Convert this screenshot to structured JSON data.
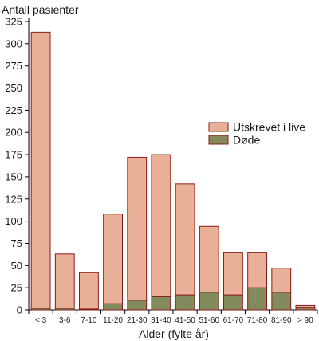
{
  "chart_data": {
    "type": "bar",
    "stacked": true,
    "ylabel": "Antall pasienter",
    "xlabel": "Alder (fylte år)",
    "ylim": [
      0,
      325
    ],
    "yticks": [
      0,
      25,
      50,
      75,
      100,
      125,
      150,
      175,
      200,
      225,
      250,
      275,
      300,
      325
    ],
    "categories": [
      "< 3",
      "3-6",
      "7-10",
      "11-20",
      "21-30",
      "31-40",
      "41-50",
      "51-60",
      "61-70",
      "71-80",
      "81-90",
      "> 90"
    ],
    "series": [
      {
        "name": "Døde",
        "color": "#838a5c",
        "values": [
          2,
          2,
          1,
          7,
          11,
          15,
          17,
          20,
          17,
          25,
          20,
          3
        ]
      },
      {
        "name": "Utskrevet i live",
        "color": "#e8b097",
        "values": [
          311,
          61,
          41,
          101,
          161,
          160,
          125,
          74,
          48,
          40,
          27,
          2
        ]
      }
    ],
    "legend": {
      "position": "right",
      "items": [
        "Utskrevet i live",
        "Døde"
      ]
    },
    "bar_stroke": "#8b1a1a",
    "grid": false
  }
}
